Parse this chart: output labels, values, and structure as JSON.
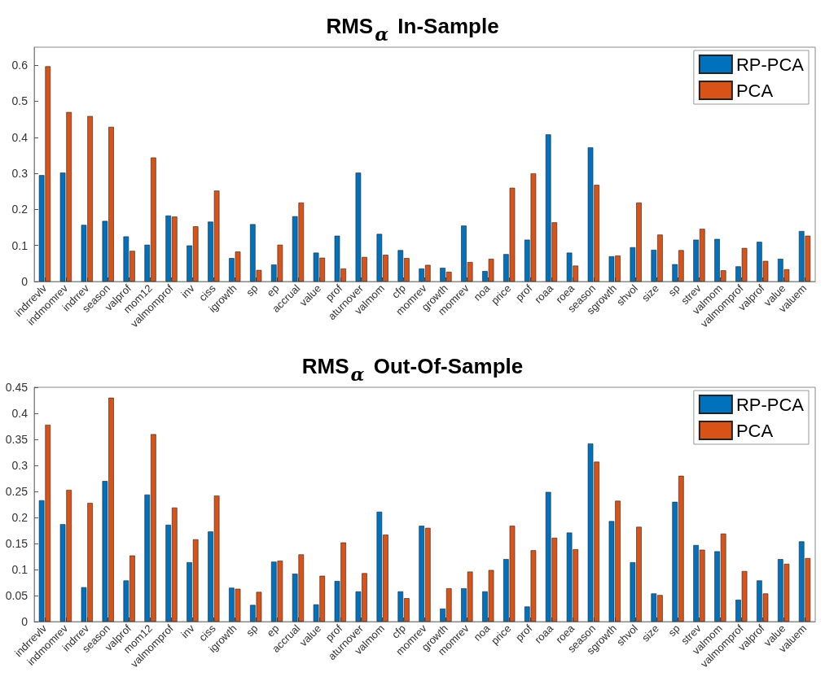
{
  "chart_data": [
    {
      "type": "bar",
      "title": "RMS$_{α}$ In-Sample",
      "categories": [
        "indrrevlv",
        "indmomrev",
        "indrrev",
        "season",
        "valprof",
        "mom12",
        "valmomprof",
        "inv",
        "ciss",
        "igrowth",
        "sp",
        "ep",
        "accrual",
        "value",
        "prof",
        "aturnover",
        "valmom",
        "cfp",
        "momrev",
        "growth",
        "momrev",
        "noa",
        "price",
        "prof",
        "roaa",
        "roea",
        "season",
        "sgrowth",
        "shvol",
        "size",
        "sp",
        "strev",
        "valmom",
        "valmomprof",
        "valprof",
        "value",
        "valuem"
      ],
      "series": [
        {
          "name": "RP-PCA",
          "color": "#0072bd",
          "values": [
            0.295,
            0.302,
            0.157,
            0.168,
            0.125,
            0.102,
            0.183,
            0.1,
            0.166,
            0.065,
            0.159,
            0.047,
            0.181,
            0.08,
            0.127,
            0.302,
            0.132,
            0.087,
            0.036,
            0.038,
            0.155,
            0.029,
            0.076,
            0.116,
            0.408,
            0.08,
            0.372,
            0.07,
            0.095,
            0.088,
            0.048,
            0.116,
            0.118,
            0.042,
            0.11,
            0.063,
            0.14
          ]
        },
        {
          "name": "PCA",
          "color": "#d95319",
          "values": [
            0.597,
            0.47,
            0.459,
            0.429,
            0.085,
            0.344,
            0.18,
            0.153,
            0.252,
            0.083,
            0.032,
            0.102,
            0.219,
            0.066,
            0.036,
            0.068,
            0.074,
            0.065,
            0.046,
            0.027,
            0.054,
            0.063,
            0.26,
            0.3,
            0.164,
            0.044,
            0.268,
            0.072,
            0.219,
            0.13,
            0.087,
            0.146,
            0.031,
            0.093,
            0.057,
            0.034,
            0.127
          ]
        }
      ],
      "ylim": [
        0,
        0.65
      ],
      "yticks": [
        0,
        0.1,
        0.2,
        0.3,
        0.4,
        0.5,
        0.6
      ],
      "grid": false,
      "legend": "top right"
    },
    {
      "type": "bar",
      "title": "RMS$_{α}$ Out-Of-Sample",
      "categories": [
        "indrrevlv",
        "indmomrev",
        "indrrev",
        "season",
        "valprof",
        "mom12",
        "valmomprof",
        "inv",
        "ciss",
        "igrowth",
        "sp",
        "ep",
        "accrual",
        "value",
        "prof",
        "aturnover",
        "valmom",
        "cfp",
        "momrev",
        "growth",
        "momrev",
        "noa",
        "price",
        "prof",
        "roaa",
        "roea",
        "season",
        "sgrowth",
        "shvol",
        "size",
        "sp",
        "strev",
        "valmom",
        "valmomprof",
        "valprof",
        "value",
        "valuem"
      ],
      "series": [
        {
          "name": "RP-PCA",
          "color": "#0072bd",
          "values": [
            0.233,
            0.187,
            0.066,
            0.27,
            0.079,
            0.244,
            0.186,
            0.114,
            0.173,
            0.065,
            0.032,
            0.115,
            0.092,
            0.033,
            0.078,
            0.058,
            0.211,
            0.058,
            0.184,
            0.025,
            0.064,
            0.058,
            0.12,
            0.029,
            0.249,
            0.171,
            0.342,
            0.193,
            0.114,
            0.054,
            0.23,
            0.147,
            0.135,
            0.042,
            0.079,
            0.12,
            0.154
          ]
        },
        {
          "name": "PCA",
          "color": "#d95319",
          "values": [
            0.378,
            0.253,
            0.228,
            0.43,
            0.127,
            0.36,
            0.219,
            0.158,
            0.242,
            0.063,
            0.057,
            0.117,
            0.129,
            0.088,
            0.152,
            0.093,
            0.167,
            0.045,
            0.18,
            0.064,
            0.096,
            0.099,
            0.184,
            0.137,
            0.161,
            0.139,
            0.307,
            0.232,
            0.182,
            0.051,
            0.28,
            0.138,
            0.169,
            0.097,
            0.054,
            0.111,
            0.122
          ]
        }
      ],
      "ylim": [
        0,
        0.45
      ],
      "yticks": [
        0,
        0.05,
        0.1,
        0.15,
        0.2,
        0.25,
        0.3,
        0.35,
        0.4,
        0.45
      ],
      "grid": false,
      "legend": "top right"
    }
  ]
}
